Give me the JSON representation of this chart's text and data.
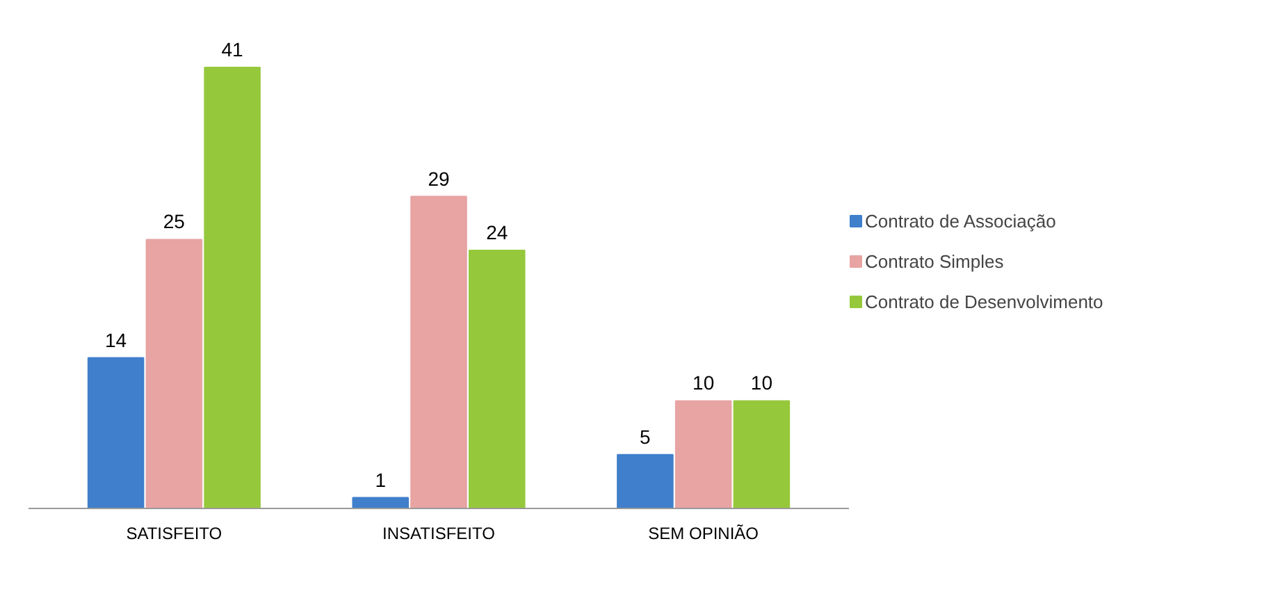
{
  "chart_data": {
    "type": "bar",
    "categories": [
      "SATISFEITO",
      "INSATISFEITO",
      "SEM OPINIÃO"
    ],
    "series": [
      {
        "name": "Contrato de Associação",
        "color": "#3f7fcb",
        "values": [
          14,
          1,
          5
        ]
      },
      {
        "name": "Contrato Simples",
        "color": "#e8a3a3",
        "values": [
          25,
          29,
          10
        ]
      },
      {
        "name": "Contrato de Desenvolvimento",
        "color": "#96c83c",
        "values": [
          41,
          24,
          10
        ]
      }
    ],
    "data_labels": true,
    "legend": "right",
    "grid": false,
    "tick_labels": "x"
  }
}
